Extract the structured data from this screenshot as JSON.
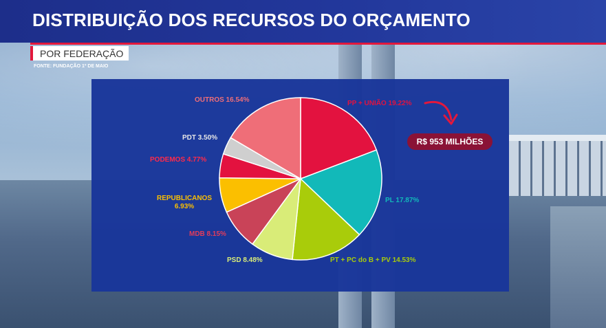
{
  "header": {
    "title": "DISTRIBUIÇÃO DOS RECURSOS DO ORÇAMENTO",
    "subtitle": "POR FEDERAÇÃO",
    "source": "FONTE: FUNDAÇÃO 1º DE MAIO"
  },
  "callout": {
    "badge_text": "R$ 953 MILHÕES",
    "badge_color": "#8a1236",
    "arrow_color": "#e3183c"
  },
  "chart_data": {
    "type": "pie",
    "title": "",
    "unit": "%",
    "slices": [
      {
        "label": "PP + UNIÃO",
        "value": 19.22,
        "display": "PP + UNIÃO 19.22%",
        "color": "#e3123f"
      },
      {
        "label": "PL",
        "value": 17.87,
        "display": "PL 17.87%",
        "color": "#12b9b9"
      },
      {
        "label": "PT + PC do B + PV",
        "value": 14.53,
        "display": "PT + PC do B + PV 14.53%",
        "color": "#a9cc0a"
      },
      {
        "label": "PSD",
        "value": 8.48,
        "display": "PSD 8.48%",
        "color": "#d9ec78"
      },
      {
        "label": "MDB",
        "value": 8.15,
        "display": "MDB 8.15%",
        "color": "#c94358"
      },
      {
        "label": "REPUBLICANOS",
        "value": 6.93,
        "display": "REPUBLICANOS\n6.93%",
        "color": "#fbbf00"
      },
      {
        "label": "PODEMOS",
        "value": 4.77,
        "display": "PODEMOS 4.77%",
        "color": "#e3123f"
      },
      {
        "label": "PDT",
        "value": 3.5,
        "display": "PDT 3.50%",
        "color": "#cfcfcf"
      },
      {
        "label": "OUTROS",
        "value": 16.54,
        "display": "OUTROS 16.54%",
        "color": "#ef6e78"
      }
    ],
    "label_colors": [
      "#e3123f",
      "#12b9b9",
      "#a9cc0a",
      "#d9ec78",
      "#e23c5a",
      "#fbbf00",
      "#ff2a4a",
      "#e6e6e6",
      "#ef6e78"
    ],
    "start_angle_deg": 0,
    "direction": "clockwise"
  }
}
